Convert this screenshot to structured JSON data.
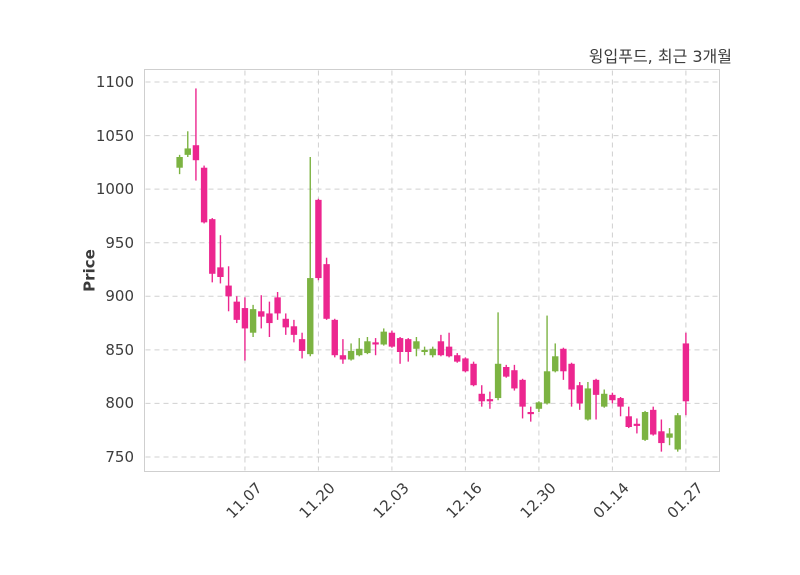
{
  "title": "윙입푸드, 최근 3개월",
  "chart_data": {
    "type": "candlestick",
    "title": "윙입푸드, 최근 3개월",
    "ylabel": "Price",
    "xlabel": "",
    "y_ticks": [
      750,
      800,
      850,
      900,
      950,
      1000,
      1050,
      1100
    ],
    "ylim": [
      737,
      1112
    ],
    "x_tick_labels": [
      "11.07",
      "11.20",
      "12.03",
      "12.16",
      "12.30",
      "01.14",
      "01.27"
    ],
    "x_tick_indices": [
      8,
      17,
      26,
      35,
      44,
      53,
      62
    ],
    "grid": "dashed, both axes",
    "legend": "none",
    "colors": {
      "up": "#7cb342",
      "down": "#ec268f",
      "grid": "#d0d0d0",
      "spine": "#cfcfcf",
      "text": "#3d3d3d",
      "background": "#ffffff"
    },
    "ohlc_note": "each candle is [open, high, low, close]; up candles green, down candles pink",
    "candles": [
      [
        1020,
        1032,
        1014,
        1030
      ],
      [
        1032,
        1054,
        1030,
        1038
      ],
      [
        1041,
        1094,
        1008,
        1027
      ],
      [
        1020,
        1022,
        968,
        969
      ],
      [
        972,
        973,
        913,
        921
      ],
      [
        927,
        957,
        912,
        918
      ],
      [
        910,
        928,
        886,
        900
      ],
      [
        895,
        900,
        875,
        878
      ],
      [
        889,
        899,
        840,
        870
      ],
      [
        866,
        892,
        862,
        888
      ],
      [
        886,
        901,
        870,
        881
      ],
      [
        884,
        895,
        862,
        875
      ],
      [
        899,
        904,
        878,
        884
      ],
      [
        879,
        884,
        864,
        871
      ],
      [
        872,
        878,
        857,
        864
      ],
      [
        860,
        866,
        842,
        849
      ],
      [
        846,
        1030,
        844,
        917
      ],
      [
        990,
        991,
        915,
        917
      ],
      [
        930,
        936,
        878,
        879
      ],
      [
        878,
        879,
        843,
        845
      ],
      [
        845,
        860,
        837,
        841
      ],
      [
        841,
        856,
        840,
        849
      ],
      [
        845,
        861,
        844,
        851
      ],
      [
        847,
        862,
        846,
        858
      ],
      [
        857,
        861,
        845,
        855
      ],
      [
        855,
        870,
        854,
        867
      ],
      [
        866,
        868,
        852,
        853
      ],
      [
        861,
        862,
        837,
        848
      ],
      [
        860,
        861,
        839,
        848
      ],
      [
        851,
        862,
        844,
        858
      ],
      [
        848,
        853,
        845,
        850
      ],
      [
        845,
        853,
        843,
        851
      ],
      [
        858,
        864,
        844,
        845
      ],
      [
        853,
        866,
        843,
        844
      ],
      [
        845,
        847,
        838,
        839
      ],
      [
        842,
        843,
        829,
        830
      ],
      [
        837,
        839,
        816,
        817
      ],
      [
        809,
        817,
        797,
        802
      ],
      [
        804,
        811,
        795,
        802
      ],
      [
        805,
        885,
        803,
        837
      ],
      [
        834,
        836,
        824,
        825
      ],
      [
        831,
        836,
        812,
        814
      ],
      [
        822,
        823,
        786,
        797
      ],
      [
        792,
        797,
        783,
        790
      ],
      [
        795,
        802,
        792,
        801
      ],
      [
        800,
        882,
        799,
        830
      ],
      [
        830,
        856,
        829,
        844
      ],
      [
        851,
        852,
        822,
        830
      ],
      [
        837,
        838,
        797,
        813
      ],
      [
        817,
        820,
        794,
        800
      ],
      [
        785,
        820,
        784,
        814
      ],
      [
        822,
        823,
        785,
        808
      ],
      [
        797,
        813,
        796,
        809
      ],
      [
        808,
        810,
        800,
        803
      ],
      [
        805,
        806,
        788,
        797
      ],
      [
        788,
        797,
        777,
        778
      ],
      [
        781,
        786,
        772,
        779
      ],
      [
        766,
        793,
        765,
        792
      ],
      [
        794,
        797,
        770,
        771
      ],
      [
        774,
        785,
        755,
        763
      ],
      [
        768,
        777,
        761,
        772
      ],
      [
        757,
        791,
        755,
        789
      ],
      [
        856,
        866,
        789,
        802
      ]
    ]
  }
}
